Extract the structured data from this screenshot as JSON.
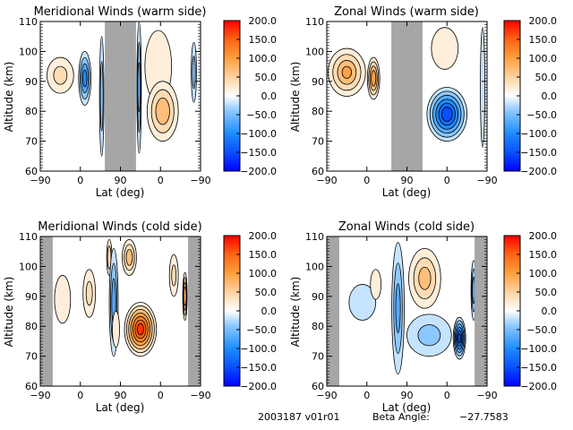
{
  "figure": {
    "footer": {
      "id_label": "2003187 v01r01",
      "beta_label": "Beta Angle:",
      "beta_value": "-27.7583"
    }
  },
  "colors": {
    "gray_mask": "#a6a6a6",
    "colormap": [
      "#0000ff",
      "#0a50ff",
      "#1e8cff",
      "#8cc8ff",
      "#ffffff",
      "#ffdcb4",
      "#ffa040",
      "#ff6414",
      "#ff0000"
    ]
  },
  "chart_data": [
    {
      "type": "heatmap",
      "panel": "top-left",
      "title": "Meridional Winds (warm side)",
      "xlabel": "Lat (deg)",
      "ylabel": "Altitude (km)",
      "x_tick_labels": [
        "-90",
        "0",
        "90",
        "0",
        "-90"
      ],
      "y_tick_labels": [
        "60",
        "70",
        "80",
        "90",
        "100",
        "110"
      ],
      "ylim": [
        60,
        110
      ],
      "colorbar": {
        "range": [
          -200,
          200
        ],
        "tick_labels": [
          "200.0",
          "150.0",
          "100.0",
          "50.0",
          "0.0",
          "-50.0",
          "-100.0",
          "-150.0",
          "-200.0"
        ]
      },
      "masked_lat_bands": [
        [
          55,
          125
        ]
      ],
      "features": [
        {
          "lat": -45,
          "alt": 92,
          "value": 50,
          "lat_half": 30,
          "alt_half": 6
        },
        {
          "lat": 10,
          "alt": 91,
          "value": -110,
          "lat_half": 14,
          "alt_half": 9
        },
        {
          "lat": 48,
          "alt": 85,
          "value": -60,
          "lat_half": 5,
          "alt_half": 20
        },
        {
          "lat": 132,
          "alt": 88,
          "value": -80,
          "lat_half": 5,
          "alt_half": 22
        },
        {
          "lat": 175,
          "alt": 95,
          "value": 30,
          "lat_half": 30,
          "alt_half": 12
        },
        {
          "lat": 185,
          "alt": 80,
          "value": 90,
          "lat_half": 35,
          "alt_half": 10
        },
        {
          "lat": 255,
          "alt": 93,
          "value": -55,
          "lat_half": 6,
          "alt_half": 10
        }
      ]
    },
    {
      "type": "heatmap",
      "panel": "top-right",
      "title": "Zonal Winds (warm side)",
      "xlabel": "Lat (deg)",
      "ylabel": "Altitude (km)",
      "x_tick_labels": [
        "-90",
        "0",
        "90",
        "0",
        "-90"
      ],
      "y_tick_labels": [
        "60",
        "70",
        "80",
        "90",
        "100",
        "110"
      ],
      "ylim": [
        60,
        110
      ],
      "colorbar": {
        "range": [
          -200,
          200
        ],
        "tick_labels": [
          "200.0",
          "150.0",
          "100.0",
          "50.0",
          "0.0",
          "-50.0",
          "-100.0",
          "-150.0",
          "-200.0"
        ]
      },
      "masked_lat_bands": [
        [
          55,
          125
        ]
      ],
      "features": [
        {
          "lat": -45,
          "alt": 93,
          "value": 100,
          "lat_half": 42,
          "alt_half": 8
        },
        {
          "lat": 15,
          "alt": 91,
          "value": 120,
          "lat_half": 14,
          "alt_half": 7
        },
        {
          "lat": 175,
          "alt": 101,
          "value": 40,
          "lat_half": 30,
          "alt_half": 7
        },
        {
          "lat": 180,
          "alt": 79,
          "value": -170,
          "lat_half": 45,
          "alt_half": 9
        },
        {
          "lat": 260,
          "alt": 88,
          "value": -40,
          "lat_half": 5,
          "alt_half": 20
        }
      ]
    },
    {
      "type": "heatmap",
      "panel": "bottom-left",
      "title": "Meridional Winds (cold side)",
      "xlabel": "Lat (deg)",
      "ylabel": "Altitude (km)",
      "x_tick_labels": [
        "-90",
        "0",
        "90",
        "0",
        "-90"
      ],
      "y_tick_labels": [
        "60",
        "70",
        "80",
        "90",
        "100",
        "110"
      ],
      "ylim": [
        60,
        110
      ],
      "colorbar": {
        "range": [
          -200,
          200
        ],
        "tick_labels": [
          "200.0",
          "150.0",
          "100.0",
          "50.0",
          "0.0",
          "-50.0",
          "-100.0",
          "-150.0",
          "-200.0"
        ]
      },
      "masked_lat_bands": [
        [
          -90,
          -62
        ],
        [
          242,
          270
        ]
      ],
      "features": [
        {
          "lat": -40,
          "alt": 89,
          "value": 40,
          "lat_half": 18,
          "alt_half": 8
        },
        {
          "lat": 20,
          "alt": 91,
          "value": 50,
          "lat_half": 14,
          "alt_half": 8
        },
        {
          "lat": 65,
          "alt": 103,
          "value": 70,
          "lat_half": 6,
          "alt_half": 6
        },
        {
          "lat": 75,
          "alt": 88,
          "value": -90,
          "lat_half": 10,
          "alt_half": 18
        },
        {
          "lat": 80,
          "alt": 79,
          "value": 40,
          "lat_half": 8,
          "alt_half": 6
        },
        {
          "lat": 110,
          "alt": 103,
          "value": 90,
          "lat_half": 16,
          "alt_half": 6
        },
        {
          "lat": 135,
          "alt": 79,
          "value": 190,
          "lat_half": 36,
          "alt_half": 9
        },
        {
          "lat": 210,
          "alt": 97,
          "value": 50,
          "lat_half": 10,
          "alt_half": 7
        },
        {
          "lat": 235,
          "alt": 90,
          "value": 120,
          "lat_half": 5,
          "alt_half": 8
        }
      ]
    },
    {
      "type": "heatmap",
      "panel": "bottom-right",
      "title": "Zonal Winds (cold side)",
      "xlabel": "Lat (deg)",
      "ylabel": "Altitude (km)",
      "x_tick_labels": [
        "-90",
        "0",
        "90",
        "0",
        "-90"
      ],
      "y_tick_labels": [
        "60",
        "70",
        "80",
        "90",
        "100",
        "110"
      ],
      "ylim": [
        60,
        110
      ],
      "colorbar": {
        "range": [
          -200,
          200
        ],
        "tick_labels": [
          "200.0",
          "150.0",
          "100.0",
          "50.0",
          "0.0",
          "-50.0",
          "-100.0",
          "-150.0",
          "-200.0"
        ]
      },
      "masked_lat_bands": [
        [
          -90,
          -62
        ],
        [
          242,
          270
        ]
      ],
      "features": [
        {
          "lat": -10,
          "alt": 88,
          "value": -40,
          "lat_half": 30,
          "alt_half": 6
        },
        {
          "lat": 20,
          "alt": 94,
          "value": 30,
          "lat_half": 12,
          "alt_half": 5
        },
        {
          "lat": 70,
          "alt": 86,
          "value": -80,
          "lat_half": 14,
          "alt_half": 22
        },
        {
          "lat": 130,
          "alt": 96,
          "value": 80,
          "lat_half": 36,
          "alt_half": 10
        },
        {
          "lat": 140,
          "alt": 77,
          "value": -50,
          "lat_half": 50,
          "alt_half": 7
        },
        {
          "lat": 208,
          "alt": 76,
          "value": -160,
          "lat_half": 14,
          "alt_half": 7
        },
        {
          "lat": 240,
          "alt": 92,
          "value": -90,
          "lat_half": 6,
          "alt_half": 10
        }
      ]
    }
  ]
}
